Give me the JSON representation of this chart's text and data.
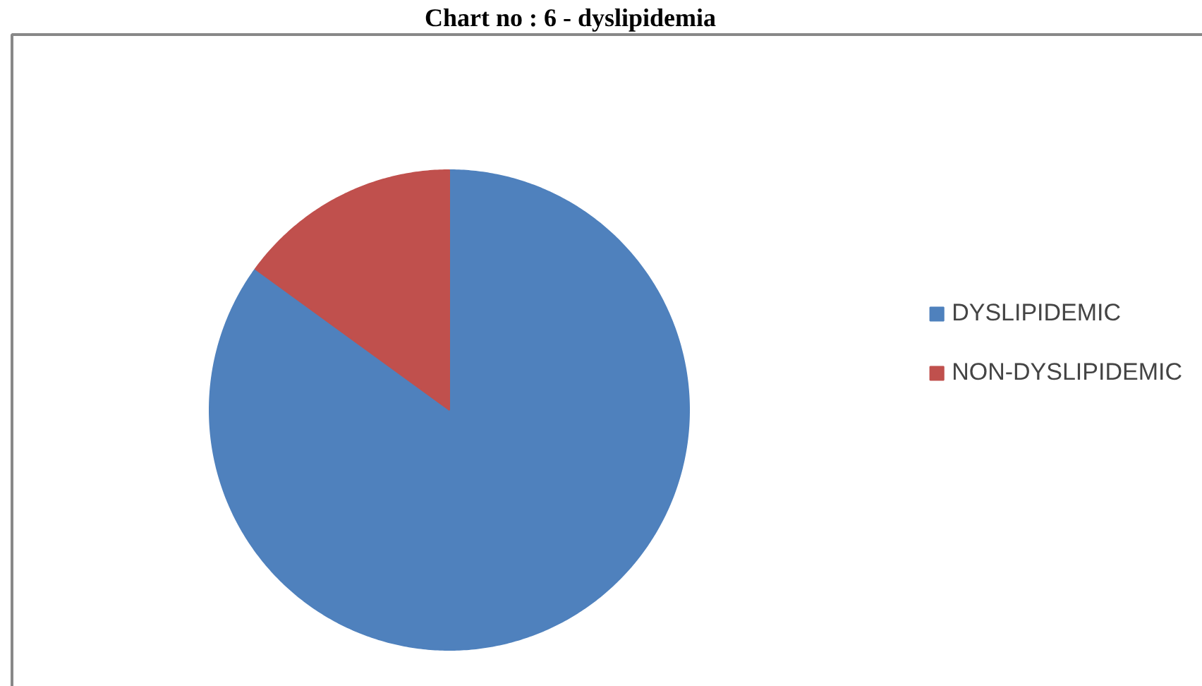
{
  "chart_data": {
    "type": "pie",
    "title": "Chart  no : 6 - dyslipidemia",
    "categories": [
      "DYSLIPIDEMIC",
      "NON-DYSLIPIDEMIC"
    ],
    "values": [
      85,
      15
    ],
    "colors": [
      "#4f81bd",
      "#c0504d"
    ],
    "legend": "right"
  }
}
